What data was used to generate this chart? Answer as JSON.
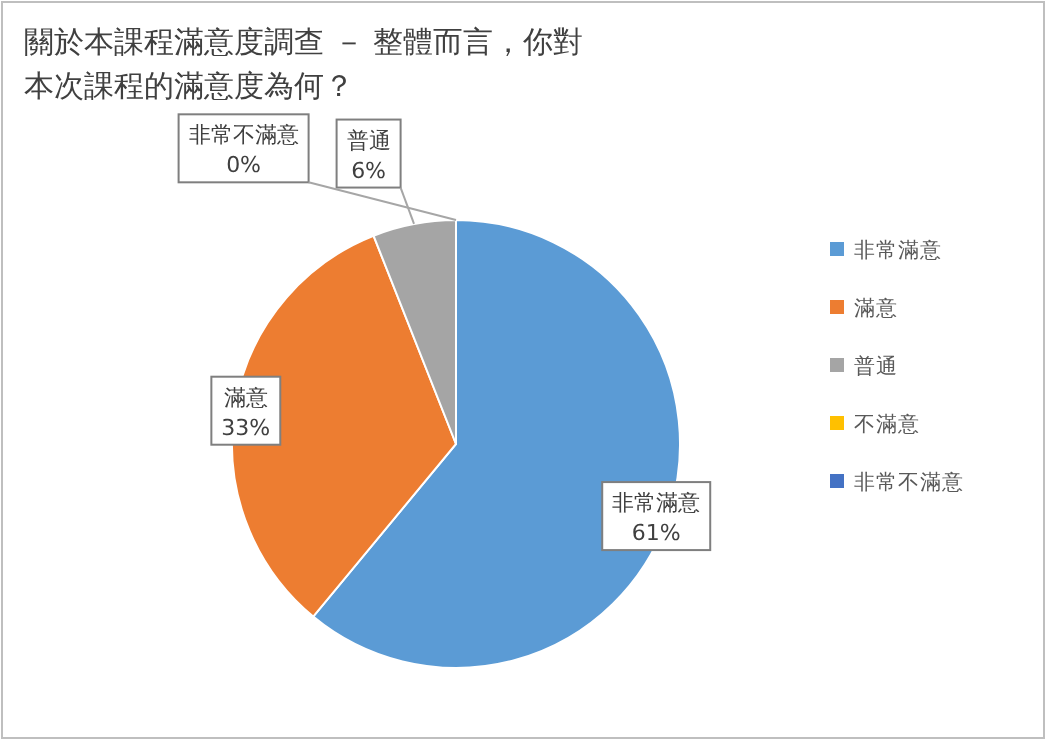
{
  "chart_data": {
    "type": "pie",
    "title": "關於本課程滿意度調查 － 整體而言，你對本次課程的滿意度為何？",
    "categories": [
      "非常滿意",
      "滿意",
      "普通",
      "不滿意",
      "非常不滿意"
    ],
    "values": [
      61,
      33,
      6,
      0,
      0
    ],
    "colors": [
      "#5b9bd5",
      "#ed7d31",
      "#a5a5a5",
      "#ffc000",
      "#4472c4"
    ],
    "value_labels": [
      "61%",
      "33%",
      "6%",
      null,
      "0%"
    ],
    "legend": "right"
  }
}
